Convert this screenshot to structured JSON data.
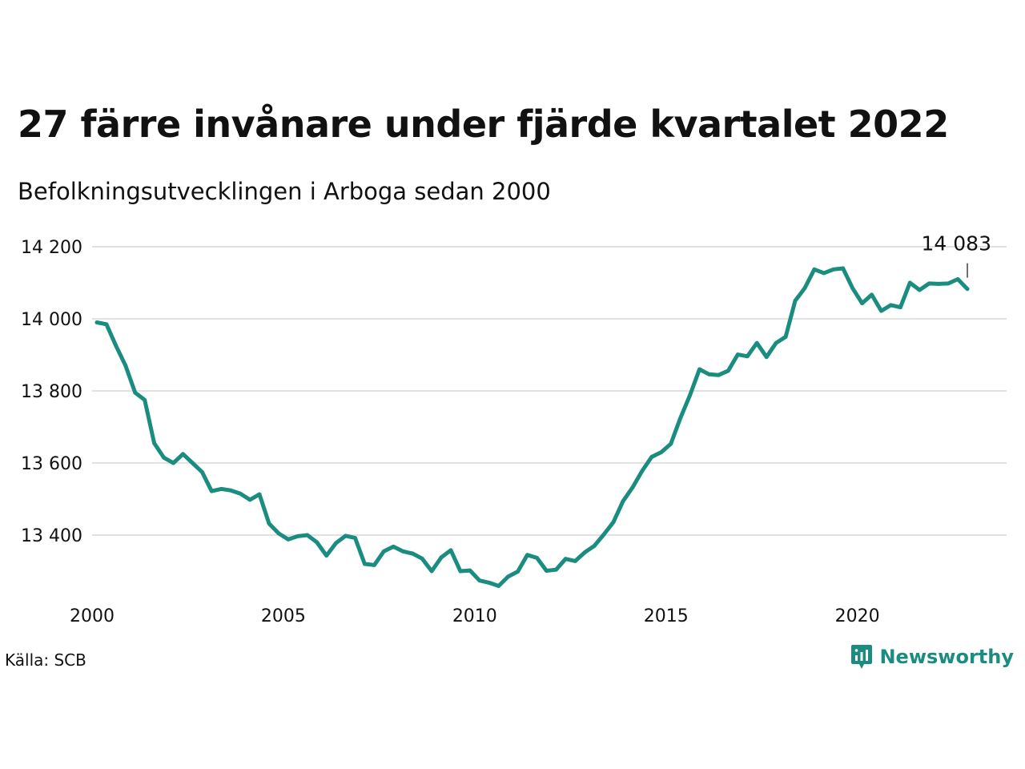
{
  "chart_data": {
    "type": "line",
    "title": "27 färre invånare under fjärde kvartalet 2022",
    "subtitle": "Befolkningsutvecklingen i Arboga sedan 2000",
    "source": "Källa: SCB",
    "brand": "Newsworthy",
    "line_color": "#1b8d80",
    "grid": true,
    "xlim": [
      2000,
      2023.9
    ],
    "ylim": [
      13240,
      14240
    ],
    "y_ticks": [
      {
        "value": 13400,
        "label": "13 400"
      },
      {
        "value": 13600,
        "label": "13 600"
      },
      {
        "value": 13800,
        "label": "13 800"
      },
      {
        "value": 14000,
        "label": "14 000"
      },
      {
        "value": 14200,
        "label": "14 200"
      }
    ],
    "x_ticks": [
      {
        "value": 2000,
        "label": "2000"
      },
      {
        "value": 2005,
        "label": "2005"
      },
      {
        "value": 2010,
        "label": "2010"
      },
      {
        "value": 2015,
        "label": "2015"
      },
      {
        "value": 2020,
        "label": "2020"
      }
    ],
    "last_value_label": "14 083",
    "series": [
      {
        "x": [
          "2000Q1",
          "2000Q2",
          "2000Q3",
          "2000Q4",
          "2001Q1",
          "2001Q2",
          "2001Q3",
          "2001Q4",
          "2002Q1",
          "2002Q2",
          "2002Q3",
          "2002Q4",
          "2003Q1",
          "2003Q2",
          "2003Q3",
          "2003Q4",
          "2004Q1",
          "2004Q2",
          "2004Q3",
          "2004Q4",
          "2005Q1",
          "2005Q2",
          "2005Q3",
          "2005Q4",
          "2006Q1",
          "2006Q2",
          "2006Q3",
          "2006Q4",
          "2007Q1",
          "2007Q2",
          "2007Q3",
          "2007Q4",
          "2008Q1",
          "2008Q2",
          "2008Q3",
          "2008Q4",
          "2009Q1",
          "2009Q2",
          "2009Q3",
          "2009Q4",
          "2010Q1",
          "2010Q2",
          "2010Q3",
          "2010Q4",
          "2011Q1",
          "2011Q2",
          "2011Q3",
          "2011Q4",
          "2012Q1",
          "2012Q2",
          "2012Q3",
          "2012Q4",
          "2013Q1",
          "2013Q2",
          "2013Q3",
          "2013Q4",
          "2014Q1",
          "2014Q2",
          "2014Q3",
          "2014Q4",
          "2015Q1",
          "2015Q2",
          "2015Q3",
          "2015Q4",
          "2016Q1",
          "2016Q2",
          "2016Q3",
          "2016Q4",
          "2017Q1",
          "2017Q2",
          "2017Q3",
          "2017Q4",
          "2018Q1",
          "2018Q2",
          "2018Q3",
          "2018Q4",
          "2019Q1",
          "2019Q2",
          "2019Q3",
          "2019Q4",
          "2020Q1",
          "2020Q2",
          "2020Q3",
          "2020Q4",
          "2021Q1",
          "2021Q2",
          "2021Q3",
          "2021Q4",
          "2022Q1",
          "2022Q2",
          "2022Q3",
          "2022Q4"
        ],
        "values": [
          13990,
          13985,
          13925,
          13870,
          13795,
          13775,
          13655,
          13615,
          13600,
          13625,
          13600,
          13575,
          13522,
          13528,
          13524,
          13515,
          13498,
          13513,
          13432,
          13405,
          13388,
          13397,
          13400,
          13380,
          13343,
          13378,
          13398,
          13392,
          13320,
          13317,
          13355,
          13368,
          13355,
          13349,
          13335,
          13300,
          13338,
          13358,
          13300,
          13302,
          13274,
          13268,
          13259,
          13285,
          13299,
          13345,
          13337,
          13301,
          13304,
          13334,
          13328,
          13352,
          13370,
          13402,
          13436,
          13494,
          13532,
          13578,
          13617,
          13630,
          13653,
          13725,
          13788,
          13860,
          13846,
          13844,
          13856,
          13901,
          13896,
          13933,
          13894,
          13933,
          13950,
          14050,
          14085,
          14137,
          14127,
          14137,
          14140,
          14085,
          14043,
          14067,
          14022,
          14038,
          14032,
          14100,
          14080,
          14098,
          14097,
          14098,
          14110,
          14083
        ]
      }
    ]
  }
}
